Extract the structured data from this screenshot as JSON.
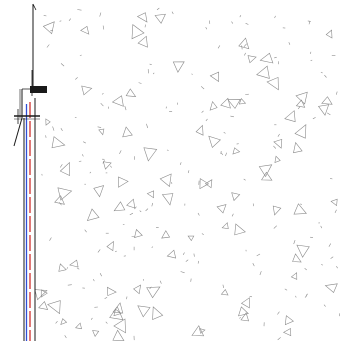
{
  "drawing": {
    "view": "section",
    "fill": "concrete-hatch",
    "colors": {
      "background": "#ffffff",
      "outline": "#1a1a1a",
      "hatch": "#8a8a8a",
      "pipe_red": "#d0302c",
      "pipe_blue": "#2f4fd6"
    },
    "elements": [
      "boundary-line",
      "anchor-bracket",
      "pipe-sleeve",
      "red-pipe",
      "blue-pipe",
      "pipe-clamp",
      "hatch-pattern"
    ]
  }
}
